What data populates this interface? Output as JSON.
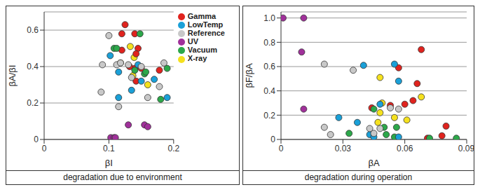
{
  "chart_data": [
    {
      "type": "scatter",
      "title": "degradation due to environment",
      "x_label": "βI",
      "y_label": "βA/βI",
      "xlim": [
        0,
        0.2
      ],
      "xticks": [
        0,
        0.1,
        0.2
      ],
      "ylim": [
        0,
        0.7
      ],
      "yticks": [
        0,
        0.2,
        0.4,
        0.6
      ],
      "grid": "y",
      "legend": "right",
      "series": [
        {
          "name": "X-ray",
          "color": "#f5e11e",
          "x": [
            0.133,
            0.118,
            0.139,
            0.16,
            0.137
          ],
          "y": [
            0.51,
            0.42,
            0.45,
            0.3,
            0.35
          ]
        },
        {
          "name": "Gamma",
          "color": "#e0231e",
          "x": [
            0.125,
            0.12,
            0.14,
            0.12,
            0.145,
            0.142,
            0.14,
            0.142,
            0.15,
            0.178,
            0.132
          ],
          "y": [
            0.63,
            0.58,
            0.58,
            0.49,
            0.5,
            0.47,
            0.39,
            0.32,
            0.39,
            0.38,
            0.4
          ]
        },
        {
          "name": "UV",
          "color": "#a0309a",
          "x": [
            0.103,
            0.108,
            0.11,
            0.13,
            0.155,
            0.16
          ],
          "y": [
            0.01,
            0.01,
            0.01,
            0.08,
            0.08,
            0.07
          ]
        },
        {
          "name": "Vacuum",
          "color": "#2ca84a",
          "x": [
            0.108,
            0.148,
            0.14,
            0.155,
            0.157,
            0.18,
            0.19,
            0.112
          ],
          "y": [
            0.5,
            0.58,
            0.38,
            0.36,
            0.37,
            0.22,
            0.39,
            0.5
          ]
        },
        {
          "name": "LowTemp",
          "color": "#1aa0d8",
          "x": [
            0.102,
            0.115,
            0.115,
            0.135,
            0.145,
            0.17,
            0.19,
            0.15
          ],
          "y": [
            0.46,
            0.37,
            0.23,
            0.27,
            0.41,
            0.33,
            0.23,
            0.32
          ]
        },
        {
          "name": "Reference",
          "color": "#c8c8c8",
          "x": [
            0.1,
            0.09,
            0.088,
            0.112,
            0.118,
            0.115,
            0.13,
            0.135,
            0.16,
            0.178,
            0.185,
            0.15
          ],
          "y": [
            0.57,
            0.41,
            0.26,
            0.41,
            0.42,
            0.18,
            0.41,
            0.34,
            0.23,
            0.29,
            0.42,
            0.4
          ]
        }
      ]
    },
    {
      "type": "scatter",
      "title": "degradation during operation",
      "x_label": "βA",
      "y_label": "βF/βA",
      "xlim": [
        0,
        0.09
      ],
      "xticks": [
        0,
        0.03,
        0.06,
        0.09
      ],
      "ylim": [
        0,
        1.05
      ],
      "yticks": [
        0,
        0.2,
        0.4,
        0.6,
        0.8,
        {
          "value": 1,
          "label": "1.0"
        }
      ],
      "grid": "y",
      "series": [
        {
          "name": "X-ray",
          "color": "#f5e11e",
          "x": [
            0.048,
            0.049,
            0.048,
            0.047,
            0.055,
            0.061,
            0.068
          ],
          "y": [
            0.51,
            0.3,
            0.22,
            0.14,
            0.18,
            0.16,
            0.35
          ]
        },
        {
          "name": "Gamma",
          "color": "#e0231e",
          "x": [
            0.068,
            0.057,
            0.066,
            0.06,
            0.044,
            0.053,
            0.064,
            0.08,
            0.078,
            0.071
          ],
          "y": [
            0.74,
            0.59,
            0.46,
            0.29,
            0.26,
            0.28,
            0.32,
            0.11,
            0.03,
            0.01
          ]
        },
        {
          "name": "UV",
          "color": "#a0309a",
          "x": [
            0.001,
            0.011,
            0.01,
            0.011
          ],
          "y": [
            1.0,
            1.0,
            0.72,
            0.25
          ]
        },
        {
          "name": "Vacuum",
          "color": "#2ca84a",
          "x": [
            0.05,
            0.056,
            0.051,
            0.055,
            0.072,
            0.085,
            0.033,
            0.045
          ],
          "y": [
            0.1,
            0.1,
            0.04,
            0.02,
            0.01,
            0.01,
            0.05,
            0.25
          ]
        },
        {
          "name": "LowTemp",
          "color": "#1aa0d8",
          "x": [
            0.04,
            0.055,
            0.057,
            0.048,
            0.028,
            0.037,
            0.043,
            0.045,
            0.057
          ],
          "y": [
            0.61,
            0.62,
            0.48,
            0.29,
            0.18,
            0.14,
            0.04,
            0.02,
            0.02
          ]
        },
        {
          "name": "Reference",
          "color": "#c8c8c8",
          "x": [
            0.021,
            0.035,
            0.043,
            0.048,
            0.021,
            0.024,
            0.045,
            0.057,
            0.053
          ],
          "y": [
            0.62,
            0.57,
            0.09,
            0.09,
            0.1,
            0.04,
            0.05,
            0.25,
            0.26
          ]
        }
      ]
    }
  ]
}
